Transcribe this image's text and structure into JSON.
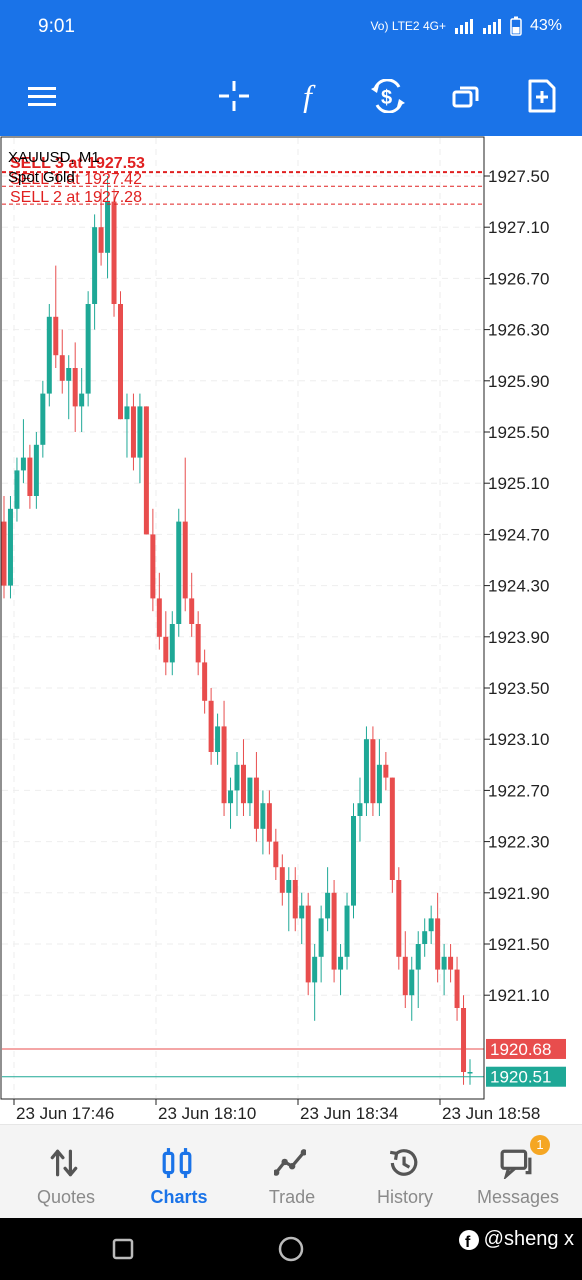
{
  "status_bar": {
    "time": "9:01",
    "network": "Vo) LTE2 4G+",
    "battery": "43%"
  },
  "toolbar": {
    "icons": [
      "menu-icon",
      "crosshair-icon",
      "indicators-icon",
      "trade-dollar-icon",
      "windows-icon",
      "new-document-icon"
    ]
  },
  "chart": {
    "symbol_label": "XAUUSD, M1",
    "description": "Spot Gold",
    "orders": [
      {
        "label": "SELL 3 at 1927.53",
        "price": 1927.53
      },
      {
        "label": "SELL 1 at 1927.42",
        "price": 1927.42
      },
      {
        "label": "SELL 2 at 1927.28",
        "price": 1927.28
      }
    ],
    "ask_label": "1920.68",
    "bid_label": "1920.51",
    "price_ticks": [
      "1927.50",
      "1927.10",
      "1926.70",
      "1926.30",
      "1925.90",
      "1925.50",
      "1925.10",
      "1924.70",
      "1924.30",
      "1923.90",
      "1923.50",
      "1923.10",
      "1922.70",
      "1922.30",
      "1921.90",
      "1921.50",
      "1921.10"
    ],
    "time_ticks": [
      "23 Jun 17:46",
      "23 Jun 18:10",
      "23 Jun 18:34",
      "23 Jun 18:58"
    ],
    "colors": {
      "up": "#1ea896",
      "down": "#e84d4d",
      "order_line": "#e02020",
      "ask": "#e84d4d",
      "bid": "#1ea896"
    }
  },
  "chart_data": {
    "type": "candlestick",
    "title": "XAUUSD, M1",
    "subtitle": "Spot Gold",
    "ylim": [
      1920.3,
      1927.8
    ],
    "candles": [
      [
        1924.8,
        1925.0,
        1924.2,
        1924.3
      ],
      [
        1924.3,
        1925.0,
        1924.2,
        1924.9
      ],
      [
        1924.9,
        1925.3,
        1924.8,
        1925.2
      ],
      [
        1925.2,
        1925.6,
        1925.1,
        1925.3
      ],
      [
        1925.3,
        1925.4,
        1924.9,
        1925.0
      ],
      [
        1925.0,
        1925.5,
        1924.9,
        1925.4
      ],
      [
        1925.4,
        1925.9,
        1925.3,
        1925.8
      ],
      [
        1925.8,
        1926.5,
        1925.7,
        1926.4
      ],
      [
        1926.4,
        1926.8,
        1926.0,
        1926.1
      ],
      [
        1926.1,
        1926.3,
        1925.8,
        1925.9
      ],
      [
        1925.9,
        1926.1,
        1925.6,
        1926.0
      ],
      [
        1926.0,
        1926.2,
        1925.5,
        1925.7
      ],
      [
        1925.7,
        1926.0,
        1925.5,
        1925.8
      ],
      [
        1925.8,
        1926.6,
        1925.7,
        1926.5
      ],
      [
        1926.5,
        1927.2,
        1926.3,
        1927.1
      ],
      [
        1927.1,
        1927.4,
        1926.8,
        1926.9
      ],
      [
        1926.9,
        1927.5,
        1926.7,
        1927.3
      ],
      [
        1927.3,
        1927.4,
        1926.4,
        1926.5
      ],
      [
        1926.5,
        1926.6,
        1925.6,
        1925.6
      ],
      [
        1925.6,
        1925.8,
        1925.3,
        1925.7
      ],
      [
        1925.7,
        1925.8,
        1925.2,
        1925.3
      ],
      [
        1925.3,
        1925.8,
        1925.1,
        1925.7
      ],
      [
        1925.7,
        1925.7,
        1924.7,
        1924.7
      ],
      [
        1924.7,
        1924.9,
        1924.1,
        1924.2
      ],
      [
        1924.2,
        1924.4,
        1923.8,
        1923.9
      ],
      [
        1923.9,
        1924.1,
        1923.6,
        1923.7
      ],
      [
        1923.7,
        1924.1,
        1923.6,
        1924.0
      ],
      [
        1924.0,
        1924.9,
        1923.9,
        1924.8
      ],
      [
        1924.8,
        1925.3,
        1924.1,
        1924.2
      ],
      [
        1924.2,
        1924.4,
        1923.9,
        1924.0
      ],
      [
        1924.0,
        1924.1,
        1923.6,
        1923.7
      ],
      [
        1923.7,
        1923.8,
        1923.3,
        1923.4
      ],
      [
        1923.4,
        1923.5,
        1922.9,
        1923.0
      ],
      [
        1923.0,
        1923.3,
        1922.9,
        1923.2
      ],
      [
        1923.2,
        1923.4,
        1922.5,
        1922.6
      ],
      [
        1922.6,
        1922.8,
        1922.4,
        1922.7
      ],
      [
        1922.7,
        1923.0,
        1922.5,
        1922.9
      ],
      [
        1922.9,
        1923.1,
        1922.5,
        1922.6
      ],
      [
        1922.6,
        1922.8,
        1922.5,
        1922.8
      ],
      [
        1922.8,
        1923.0,
        1922.3,
        1922.4
      ],
      [
        1922.4,
        1922.7,
        1922.2,
        1922.6
      ],
      [
        1922.6,
        1922.7,
        1922.2,
        1922.3
      ],
      [
        1922.3,
        1922.4,
        1922.0,
        1922.1
      ],
      [
        1922.1,
        1922.2,
        1921.8,
        1921.9
      ],
      [
        1921.9,
        1922.1,
        1921.6,
        1922.0
      ],
      [
        1922.0,
        1922.1,
        1921.6,
        1921.7
      ],
      [
        1921.7,
        1921.9,
        1921.5,
        1921.8
      ],
      [
        1921.8,
        1921.9,
        1921.1,
        1921.2
      ],
      [
        1921.2,
        1921.5,
        1920.9,
        1921.4
      ],
      [
        1921.4,
        1921.8,
        1921.2,
        1921.7
      ],
      [
        1921.7,
        1922.1,
        1921.6,
        1921.9
      ],
      [
        1921.9,
        1922.0,
        1921.2,
        1921.3
      ],
      [
        1921.3,
        1921.5,
        1921.1,
        1921.4
      ],
      [
        1921.4,
        1921.9,
        1921.3,
        1921.8
      ],
      [
        1921.8,
        1922.6,
        1921.7,
        1922.5
      ],
      [
        1922.5,
        1922.8,
        1922.3,
        1922.6
      ],
      [
        1922.6,
        1923.2,
        1922.5,
        1923.1
      ],
      [
        1923.1,
        1923.2,
        1922.5,
        1922.6
      ],
      [
        1922.6,
        1923.1,
        1922.5,
        1922.9
      ],
      [
        1922.9,
        1923.0,
        1922.7,
        1922.8
      ],
      [
        1922.8,
        1922.8,
        1921.9,
        1922.0
      ],
      [
        1922.0,
        1922.1,
        1921.3,
        1921.4
      ],
      [
        1921.4,
        1921.6,
        1921.0,
        1921.1
      ],
      [
        1921.1,
        1921.4,
        1920.9,
        1921.3
      ],
      [
        1921.3,
        1921.6,
        1921.0,
        1921.5
      ],
      [
        1921.5,
        1921.7,
        1921.4,
        1921.6
      ],
      [
        1921.6,
        1921.8,
        1921.5,
        1921.7
      ],
      [
        1921.7,
        1921.9,
        1921.2,
        1921.3
      ],
      [
        1921.3,
        1921.5,
        1921.1,
        1921.4
      ],
      [
        1921.4,
        1921.5,
        1921.2,
        1921.3
      ],
      [
        1921.3,
        1921.4,
        1920.9,
        1921.0
      ],
      [
        1921.0,
        1921.1,
        1920.4,
        1920.5
      ],
      [
        1920.5,
        1920.6,
        1920.4,
        1920.5
      ]
    ]
  },
  "nav": {
    "items": [
      {
        "label": "Quotes",
        "icon": "quotes-icon"
      },
      {
        "label": "Charts",
        "icon": "charts-icon"
      },
      {
        "label": "Trade",
        "icon": "trade-icon"
      },
      {
        "label": "History",
        "icon": "history-icon"
      },
      {
        "label": "Messages",
        "icon": "messages-icon",
        "badge": "1"
      }
    ]
  },
  "watermark": "@sheng x"
}
